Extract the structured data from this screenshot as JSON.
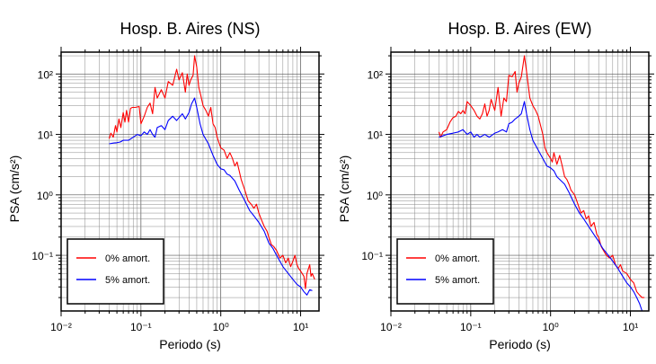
{
  "chart_data": [
    {
      "type": "line",
      "title": "Hosp. B. Aires (NS)",
      "xlabel": "Periodo (s)",
      "ylabel": "PSA (cm/s²)",
      "xscale": "log",
      "yscale": "log",
      "xlim": [
        0.01,
        17
      ],
      "ylim": [
        0.012,
        230
      ],
      "grid": true,
      "legend_position": "bottom-left",
      "x_ticks": [
        "10⁻²",
        "10⁻¹",
        "10⁰",
        "10¹"
      ],
      "y_ticks": [
        "10⁻¹",
        "10⁰",
        "10¹",
        "10²"
      ],
      "series": [
        {
          "name": "0% amort.",
          "color": "#ff0000",
          "points": [
            [
              0.04,
              8.5
            ],
            [
              0.042,
              10.5
            ],
            [
              0.045,
              9
            ],
            [
              0.048,
              14
            ],
            [
              0.05,
              11
            ],
            [
              0.053,
              18
            ],
            [
              0.056,
              13
            ],
            [
              0.06,
              23
            ],
            [
              0.063,
              16
            ],
            [
              0.066,
              25
            ],
            [
              0.07,
              16
            ],
            [
              0.074,
              27
            ],
            [
              0.078,
              28
            ],
            [
              0.085,
              28
            ],
            [
              0.095,
              29
            ],
            [
              0.1,
              15
            ],
            [
              0.11,
              20
            ],
            [
              0.12,
              28
            ],
            [
              0.13,
              33
            ],
            [
              0.14,
              22
            ],
            [
              0.15,
              60
            ],
            [
              0.16,
              40
            ],
            [
              0.18,
              55
            ],
            [
              0.2,
              40
            ],
            [
              0.22,
              75
            ],
            [
              0.25,
              65
            ],
            [
              0.28,
              120
            ],
            [
              0.3,
              80
            ],
            [
              0.33,
              105
            ],
            [
              0.36,
              50
            ],
            [
              0.38,
              100
            ],
            [
              0.4,
              65
            ],
            [
              0.42,
              80
            ],
            [
              0.45,
              95
            ],
            [
              0.47,
              200
            ],
            [
              0.5,
              130
            ],
            [
              0.53,
              60
            ],
            [
              0.56,
              45
            ],
            [
              0.6,
              30
            ],
            [
              0.65,
              25
            ],
            [
              0.7,
              20
            ],
            [
              0.75,
              28
            ],
            [
              0.8,
              15
            ],
            [
              0.85,
              13
            ],
            [
              0.9,
              9
            ],
            [
              1.0,
              6
            ],
            [
              1.1,
              5.5
            ],
            [
              1.2,
              4
            ],
            [
              1.3,
              5
            ],
            [
              1.4,
              4
            ],
            [
              1.5,
              3
            ],
            [
              1.6,
              3.5
            ],
            [
              1.7,
              2.5
            ],
            [
              1.8,
              1.8
            ],
            [
              2.0,
              1.2
            ],
            [
              2.2,
              0.8
            ],
            [
              2.4,
              0.7
            ],
            [
              2.6,
              0.6
            ],
            [
              2.8,
              0.7
            ],
            [
              3.0,
              0.5
            ],
            [
              3.2,
              0.4
            ],
            [
              3.5,
              0.3
            ],
            [
              3.8,
              0.25
            ],
            [
              4.0,
              0.2
            ],
            [
              4.3,
              0.15
            ],
            [
              4.6,
              0.14
            ],
            [
              5.0,
              0.12
            ],
            [
              5.5,
              0.09
            ],
            [
              6.0,
              0.1
            ],
            [
              6.5,
              0.075
            ],
            [
              7.0,
              0.09
            ],
            [
              7.5,
              0.065
            ],
            [
              8.0,
              0.08
            ],
            [
              8.5,
              0.1
            ],
            [
              9.0,
              0.07
            ],
            [
              9.5,
              0.06
            ],
            [
              10.0,
              0.055
            ],
            [
              11.0,
              0.045
            ],
            [
              11.5,
              0.028
            ],
            [
              12.0,
              0.05
            ],
            [
              13.0,
              0.07
            ],
            [
              13.5,
              0.045
            ],
            [
              14.0,
              0.05
            ],
            [
              15.0,
              0.04
            ]
          ]
        },
        {
          "name": "5% amort.",
          "color": "#0000ff",
          "points": [
            [
              0.04,
              7
            ],
            [
              0.045,
              7.2
            ],
            [
              0.05,
              7.3
            ],
            [
              0.055,
              7.5
            ],
            [
              0.06,
              8
            ],
            [
              0.07,
              8
            ],
            [
              0.08,
              9
            ],
            [
              0.09,
              10
            ],
            [
              0.1,
              9.5
            ],
            [
              0.11,
              11
            ],
            [
              0.12,
              10
            ],
            [
              0.13,
              12
            ],
            [
              0.14,
              10
            ],
            [
              0.15,
              9
            ],
            [
              0.16,
              13
            ],
            [
              0.18,
              14
            ],
            [
              0.2,
              12
            ],
            [
              0.22,
              17
            ],
            [
              0.25,
              20
            ],
            [
              0.28,
              17
            ],
            [
              0.3,
              19
            ],
            [
              0.33,
              22
            ],
            [
              0.36,
              18
            ],
            [
              0.4,
              23
            ],
            [
              0.43,
              32
            ],
            [
              0.47,
              40
            ],
            [
              0.5,
              28
            ],
            [
              0.55,
              15
            ],
            [
              0.6,
              10
            ],
            [
              0.7,
              7
            ],
            [
              0.8,
              4.5
            ],
            [
              0.9,
              3.2
            ],
            [
              1.0,
              2.7
            ],
            [
              1.1,
              2.6
            ],
            [
              1.2,
              2.2
            ],
            [
              1.3,
              2.1
            ],
            [
              1.5,
              1.7
            ],
            [
              1.7,
              1.2
            ],
            [
              2.0,
              0.8
            ],
            [
              2.3,
              0.55
            ],
            [
              2.6,
              0.45
            ],
            [
              3.0,
              0.35
            ],
            [
              3.5,
              0.25
            ],
            [
              4.0,
              0.16
            ],
            [
              4.5,
              0.13
            ],
            [
              5.0,
              0.1
            ],
            [
              5.5,
              0.08
            ],
            [
              6.0,
              0.065
            ],
            [
              7.0,
              0.05
            ],
            [
              8.0,
              0.04
            ],
            [
              9.0,
              0.033
            ],
            [
              10.0,
              0.03
            ],
            [
              11.0,
              0.025
            ],
            [
              12.0,
              0.022
            ],
            [
              13.0,
              0.027
            ],
            [
              14.0,
              0.026
            ]
          ]
        }
      ]
    },
    {
      "type": "line",
      "title": "Hosp. B. Aires (EW)",
      "xlabel": "Periodo (s)",
      "ylabel": "PSA (cm/s²)",
      "xscale": "log",
      "yscale": "log",
      "xlim": [
        0.01,
        17
      ],
      "ylim": [
        0.012,
        230
      ],
      "grid": true,
      "legend_position": "bottom-left",
      "x_ticks": [
        "10⁻²",
        "10⁻¹",
        "10⁰",
        "10¹"
      ],
      "y_ticks": [
        "10⁻¹",
        "10⁰",
        "10¹",
        "10²"
      ],
      "series": [
        {
          "name": "0% amort.",
          "color": "#ff0000",
          "points": [
            [
              0.04,
              11
            ],
            [
              0.042,
              9
            ],
            [
              0.045,
              11
            ],
            [
              0.05,
              12
            ],
            [
              0.055,
              16
            ],
            [
              0.06,
              19
            ],
            [
              0.065,
              20
            ],
            [
              0.07,
              24
            ],
            [
              0.075,
              22
            ],
            [
              0.08,
              25
            ],
            [
              0.085,
              22
            ],
            [
              0.09,
              35
            ],
            [
              0.1,
              30
            ],
            [
              0.11,
              25
            ],
            [
              0.12,
              20
            ],
            [
              0.13,
              18
            ],
            [
              0.14,
              22
            ],
            [
              0.15,
              32
            ],
            [
              0.16,
              20
            ],
            [
              0.17,
              25
            ],
            [
              0.18,
              38
            ],
            [
              0.2,
              25
            ],
            [
              0.22,
              60
            ],
            [
              0.24,
              20
            ],
            [
              0.26,
              40
            ],
            [
              0.28,
              35
            ],
            [
              0.3,
              95
            ],
            [
              0.33,
              90
            ],
            [
              0.36,
              110
            ],
            [
              0.38,
              50
            ],
            [
              0.4,
              70
            ],
            [
              0.43,
              90
            ],
            [
              0.47,
              200
            ],
            [
              0.5,
              110
            ],
            [
              0.55,
              40
            ],
            [
              0.6,
              30
            ],
            [
              0.65,
              25
            ],
            [
              0.7,
              20
            ],
            [
              0.75,
              14
            ],
            [
              0.8,
              10
            ],
            [
              0.85,
              6
            ],
            [
              0.9,
              5
            ],
            [
              1.0,
              4
            ],
            [
              1.05,
              3.5
            ],
            [
              1.1,
              5
            ],
            [
              1.2,
              3.2
            ],
            [
              1.3,
              4.5
            ],
            [
              1.4,
              3
            ],
            [
              1.5,
              2
            ],
            [
              1.6,
              1.8
            ],
            [
              1.7,
              1.5
            ],
            [
              1.8,
              1.2
            ],
            [
              2.0,
              1.0
            ],
            [
              2.2,
              0.7
            ],
            [
              2.4,
              0.5
            ],
            [
              2.6,
              0.55
            ],
            [
              2.8,
              0.4
            ],
            [
              3.0,
              0.45
            ],
            [
              3.2,
              0.3
            ],
            [
              3.5,
              0.35
            ],
            [
              3.8,
              0.22
            ],
            [
              4.0,
              0.2
            ],
            [
              4.3,
              0.14
            ],
            [
              4.6,
              0.12
            ],
            [
              5.0,
              0.1
            ],
            [
              5.5,
              0.09
            ],
            [
              6.0,
              0.1
            ],
            [
              6.5,
              0.07
            ],
            [
              7.0,
              0.06
            ],
            [
              7.5,
              0.07
            ],
            [
              8.0,
              0.055
            ],
            [
              9.0,
              0.05
            ],
            [
              10.0,
              0.04
            ],
            [
              11.0,
              0.035
            ],
            [
              12.0,
              0.025
            ],
            [
              13.0,
              0.022
            ],
            [
              14.0,
              0.02
            ],
            [
              15.0,
              0.02
            ]
          ]
        },
        {
          "name": "5% amort.",
          "color": "#0000ff",
          "points": [
            [
              0.04,
              9
            ],
            [
              0.045,
              9.5
            ],
            [
              0.05,
              10
            ],
            [
              0.06,
              10.5
            ],
            [
              0.07,
              11
            ],
            [
              0.08,
              12
            ],
            [
              0.09,
              10
            ],
            [
              0.1,
              11
            ],
            [
              0.11,
              9
            ],
            [
              0.12,
              10
            ],
            [
              0.13,
              9
            ],
            [
              0.15,
              10
            ],
            [
              0.17,
              9
            ],
            [
              0.2,
              10.5
            ],
            [
              0.22,
              11
            ],
            [
              0.25,
              12
            ],
            [
              0.28,
              11
            ],
            [
              0.3,
              15
            ],
            [
              0.33,
              16
            ],
            [
              0.36,
              18
            ],
            [
              0.4,
              20
            ],
            [
              0.43,
              22
            ],
            [
              0.47,
              35
            ],
            [
              0.5,
              22
            ],
            [
              0.55,
              12
            ],
            [
              0.6,
              8
            ],
            [
              0.7,
              5.5
            ],
            [
              0.8,
              4
            ],
            [
              0.9,
              3
            ],
            [
              1.0,
              2.8
            ],
            [
              1.1,
              2.5
            ],
            [
              1.2,
              2
            ],
            [
              1.3,
              1.8
            ],
            [
              1.5,
              1.5
            ],
            [
              1.7,
              1.1
            ],
            [
              2.0,
              0.7
            ],
            [
              2.3,
              0.5
            ],
            [
              2.6,
              0.4
            ],
            [
              3.0,
              0.3
            ],
            [
              3.5,
              0.22
            ],
            [
              4.0,
              0.17
            ],
            [
              4.5,
              0.13
            ],
            [
              5.0,
              0.11
            ],
            [
              6.0,
              0.08
            ],
            [
              7.0,
              0.06
            ],
            [
              8.0,
              0.045
            ],
            [
              9.0,
              0.035
            ],
            [
              10.0,
              0.03
            ],
            [
              11.0,
              0.025
            ],
            [
              12.0,
              0.02
            ],
            [
              13.0,
              0.016
            ],
            [
              14.0,
              0.012
            ]
          ]
        }
      ]
    }
  ]
}
